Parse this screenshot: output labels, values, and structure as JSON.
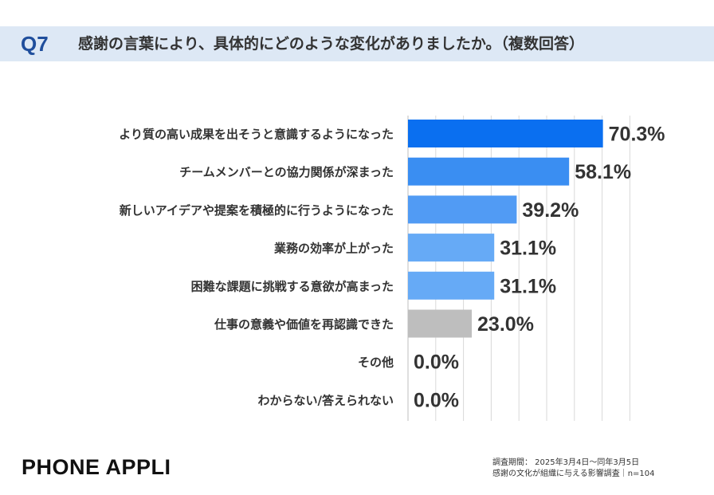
{
  "header": {
    "qnum": "Q7",
    "question": "感謝の言葉により、具体的にどのような変化がありましたか。（複数回答）"
  },
  "chart_data": {
    "type": "bar",
    "orientation": "horizontal",
    "categories": [
      "より質の高い成果を出そうと意識するようになった",
      "チームメンバーとの協力関係が深まった",
      "新しいアイデアや提案を積極的に行うようになった",
      "業務の効率が上がった",
      "困難な課題に挑戦する意欲が高まった",
      "仕事の意義や価値を再認識できた",
      "その他",
      "わからない/答えられない"
    ],
    "values": [
      70.3,
      58.1,
      39.2,
      31.1,
      31.1,
      23.0,
      0.0,
      0.0
    ],
    "value_labels": [
      "70.3%",
      "58.1%",
      "39.2%",
      "31.1%",
      "31.1%",
      "23.0%",
      "0.0%",
      "0.0%"
    ],
    "colors": [
      "#0a6ff0",
      "#3a8ef2",
      "#519bf4",
      "#66aaf6",
      "#66aaf6",
      "#bebebe",
      "#bebebe",
      "#bebebe"
    ],
    "xlim": [
      0,
      80
    ],
    "grid": true
  },
  "footer": {
    "brand": "PHONE APPLI",
    "note_line1": "調査期間： 2025年3月4日～同年3月5日",
    "note_line2": "感謝の文化が組織に与える影響調査｜n=104"
  }
}
